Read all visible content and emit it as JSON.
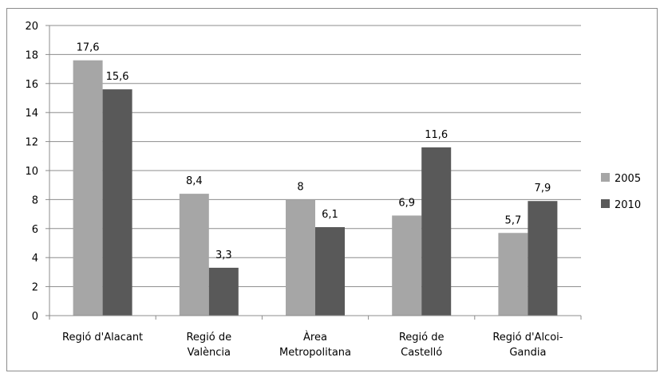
{
  "chart_data": {
    "type": "bar",
    "categories": [
      [
        "Regió d'Alacant"
      ],
      [
        "Regió de",
        "València"
      ],
      [
        "Àrea",
        "Metropolitana"
      ],
      [
        "Regió de",
        "Castelló"
      ],
      [
        "Regió d'Alcoi-",
        "Gandia"
      ]
    ],
    "series": [
      {
        "name": "2005",
        "values": [
          17.6,
          8.4,
          8,
          6.9,
          5.7
        ],
        "labels": [
          "17,6",
          "8,4",
          "8",
          "6,9",
          "5,7"
        ],
        "color": "#a6a6a6"
      },
      {
        "name": "2010",
        "values": [
          15.6,
          3.3,
          6.1,
          11.6,
          7.9
        ],
        "labels": [
          "15,6",
          "3,3",
          "6,1",
          "11,6",
          "7,9"
        ],
        "color": "#595959"
      }
    ],
    "ylim": [
      0,
      20
    ],
    "yticks": [
      "0",
      "2",
      "4",
      "6",
      "8",
      "10",
      "12",
      "14",
      "16",
      "18",
      "20"
    ],
    "grid": true,
    "legend_position": "right"
  }
}
